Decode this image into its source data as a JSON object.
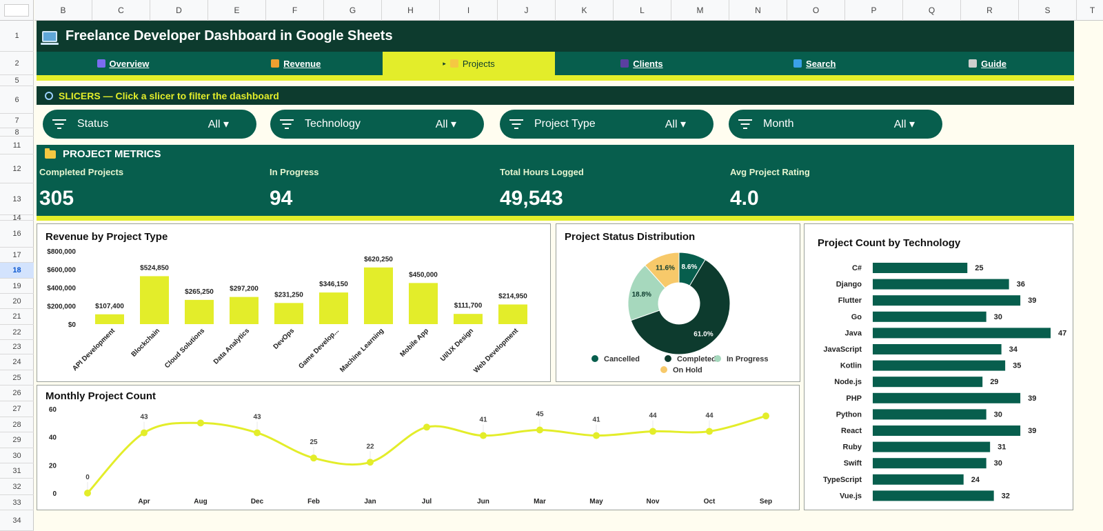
{
  "sheet": {
    "columns": [
      "B",
      "C",
      "D",
      "E",
      "F",
      "G",
      "H",
      "I",
      "J",
      "K",
      "L",
      "M",
      "N",
      "O",
      "P",
      "Q",
      "R",
      "S",
      "T"
    ],
    "rows": [
      "1",
      "2",
      "5",
      "6",
      "7",
      "8",
      "11",
      "12",
      "13",
      "14",
      "16",
      "17",
      "18",
      "19",
      "20",
      "21",
      "22",
      "23",
      "24",
      "25",
      "26",
      "27",
      "28",
      "29",
      "30",
      "31",
      "32",
      "33",
      "34"
    ],
    "selected_row": "18"
  },
  "header": {
    "title": "Freelance Developer Dashboard in Google Sheets",
    "icon": "laptop-icon"
  },
  "nav": {
    "tabs": [
      {
        "label": "Overview",
        "icon": "chart-icon",
        "color": "#7a6cf0",
        "active": false
      },
      {
        "label": "Revenue",
        "icon": "money-icon",
        "color": "#f0a030",
        "active": false
      },
      {
        "label": "Projects",
        "icon": "folder-icon",
        "color": "#f5c842",
        "active": true,
        "marker": "▸"
      },
      {
        "label": "Clients",
        "icon": "people-icon",
        "color": "#5b3fa0",
        "active": false
      },
      {
        "label": "Search",
        "icon": "search-icon",
        "color": "#3aa0e8",
        "active": false
      },
      {
        "label": "Guide",
        "icon": "book-icon",
        "color": "#cfcfcf",
        "active": false
      }
    ]
  },
  "slicers": {
    "header": "SLICERS — Click a slicer to filter the dashboard",
    "items": [
      {
        "label": "Status",
        "value": "All ▾"
      },
      {
        "label": "Technology",
        "value": "All ▾"
      },
      {
        "label": "Project Type",
        "value": "All ▾"
      },
      {
        "label": "Month",
        "value": "All ▾"
      }
    ]
  },
  "metrics": {
    "title": "PROJECT METRICS",
    "items": [
      {
        "label": "Completed Projects",
        "value": "305"
      },
      {
        "label": "In Progress",
        "value": "94"
      },
      {
        "label": "Total Hours Logged",
        "value": "49,543"
      },
      {
        "label": "Avg Project Rating",
        "value": "4.0"
      }
    ]
  },
  "colors": {
    "dark_green": "#0d3b2e",
    "green": "#075e4d",
    "lime": "#e3ed2a",
    "light_green": "#a6d8bd",
    "amber": "#f7c96a"
  },
  "chart_data": [
    {
      "type": "bar",
      "title": "Revenue by Project Type",
      "categories": [
        "API Development",
        "Blockchain",
        "Cloud Solutions",
        "Data Analytics",
        "DevOps",
        "Game Develop...",
        "Machine Learning",
        "Mobile App",
        "UI/UX Design",
        "Web Development"
      ],
      "values": [
        107400,
        524850,
        265250,
        297200,
        231250,
        346150,
        620250,
        450000,
        111700,
        214950
      ],
      "labels": [
        "$107,400",
        "$524,850",
        "$265,250",
        "$297,200",
        "$231,250",
        "$346,150",
        "$620,250",
        "$450,000",
        "$111,700",
        "$214,950"
      ],
      "yticks": [
        "$0",
        "$200,000",
        "$400,000",
        "$600,000",
        "$800,000"
      ],
      "ylim": [
        0,
        800000
      ],
      "color": "#e3ed2a",
      "grid": false
    },
    {
      "type": "pie",
      "title": "Project Status Distribution",
      "categories": [
        "Cancelled",
        "Completed",
        "In Progress",
        "On Hold"
      ],
      "values": [
        8.6,
        61.0,
        18.8,
        11.6
      ],
      "labels": [
        "8.6%",
        "61.0%",
        "18.8%",
        "11.6%"
      ],
      "colors": [
        "#075e4d",
        "#0d3b2e",
        "#a6d8bd",
        "#f7c96a"
      ],
      "donut": true,
      "legend": "bottom"
    },
    {
      "type": "bar",
      "orientation": "horizontal",
      "title": "Project Count by Technology",
      "categories": [
        "C#",
        "Django",
        "Flutter",
        "Go",
        "Java",
        "JavaScript",
        "Kotlin",
        "Node.js",
        "PHP",
        "Python",
        "React",
        "Ruby",
        "Swift",
        "TypeScript",
        "Vue.js"
      ],
      "values": [
        25,
        36,
        39,
        30,
        47,
        34,
        35,
        29,
        39,
        30,
        39,
        31,
        30,
        24,
        32
      ],
      "color": "#075e4d",
      "grid": false
    },
    {
      "type": "line",
      "title": "Monthly Project Count",
      "categories": [
        "",
        "Apr",
        "Aug",
        "Dec",
        "Feb",
        "Jan",
        "Jul",
        "Jun",
        "Mar",
        "May",
        "Nov",
        "Oct",
        "Sep"
      ],
      "values": [
        0,
        43,
        50,
        43,
        25,
        22,
        47,
        41,
        45,
        41,
        44,
        44,
        55
      ],
      "point_labels": [
        "0",
        "43",
        "",
        "43",
        "25",
        "22",
        "",
        "41",
        "45",
        "41",
        "44",
        "44",
        ""
      ],
      "yticks": [
        "0",
        "20",
        "40",
        "60"
      ],
      "ylim": [
        0,
        60
      ],
      "color": "#e3ed2a",
      "smooth": true
    }
  ]
}
